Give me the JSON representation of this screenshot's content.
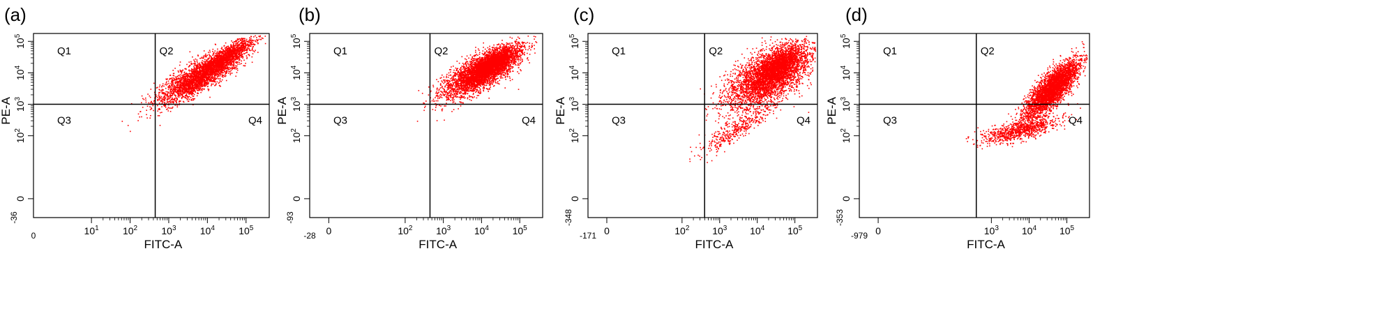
{
  "chart_data": [
    {
      "type": "scatter",
      "panel_label": "(a)",
      "xlabel": "FITC-A",
      "ylabel": "PE-A",
      "x_min_label": "0",
      "y_min_label": "-36",
      "x_ticks": [
        {
          "v": 1,
          "label": "10^1"
        },
        {
          "v": 2,
          "label": "10^2"
        },
        {
          "v": 3,
          "label": "10^3"
        },
        {
          "v": 4,
          "label": "10^4"
        },
        {
          "v": 5,
          "label": "10^5"
        }
      ],
      "y_ticks": [
        {
          "v": 0,
          "label": "0"
        },
        {
          "v": 2,
          "label": "10^2"
        },
        {
          "v": 3,
          "label": "10^3"
        },
        {
          "v": 4,
          "label": "10^4"
        },
        {
          "v": 5,
          "label": "10^5"
        }
      ],
      "gate": {
        "x": 2.65,
        "y": 3.0
      },
      "quadrants": [
        "Q1",
        "Q2",
        "Q3",
        "Q4"
      ],
      "point_color": "#ff0000",
      "populations": [
        {
          "mx": 3.85,
          "my": 3.95,
          "sx": 0.55,
          "sy": 0.45,
          "n": 3200,
          "diag": -0.85
        },
        {
          "mx": 4.55,
          "my": 4.6,
          "sx": 0.3,
          "sy": 0.25,
          "n": 800,
          "diag": -0.85
        }
      ]
    },
    {
      "type": "scatter",
      "panel_label": "(b)",
      "xlabel": "FITC-A",
      "ylabel": "PE-A",
      "x_min_label": "-28",
      "y_min_label": "-93",
      "x_ticks": [
        {
          "v": 0,
          "label": "0"
        },
        {
          "v": 2,
          "label": "10^2"
        },
        {
          "v": 3,
          "label": "10^3"
        },
        {
          "v": 4,
          "label": "10^4"
        },
        {
          "v": 5,
          "label": "10^5"
        }
      ],
      "y_ticks": [
        {
          "v": 0,
          "label": "0"
        },
        {
          "v": 2,
          "label": "10^2"
        },
        {
          "v": 3,
          "label": "10^3"
        },
        {
          "v": 4,
          "label": "10^4"
        },
        {
          "v": 5,
          "label": "10^5"
        }
      ],
      "gate": {
        "x": 2.65,
        "y": 3.0
      },
      "quadrants": [
        "Q1",
        "Q2",
        "Q3",
        "Q4"
      ],
      "point_color": "#ff0000",
      "populations": [
        {
          "mx": 4.0,
          "my": 4.05,
          "sx": 0.5,
          "sy": 0.4,
          "n": 3600,
          "diag": -0.75
        },
        {
          "mx": 4.25,
          "my": 4.3,
          "sx": 0.3,
          "sy": 0.25,
          "n": 1800,
          "diag": -0.75
        }
      ]
    },
    {
      "type": "scatter",
      "panel_label": "(c)",
      "xlabel": "FITC-A",
      "ylabel": "PE-A",
      "x_min_label": "-171",
      "y_min_label": "-348",
      "x_ticks": [
        {
          "v": 0,
          "label": "0"
        },
        {
          "v": 2,
          "label": "10^2"
        },
        {
          "v": 3,
          "label": "10^3"
        },
        {
          "v": 4,
          "label": "10^4"
        },
        {
          "v": 5,
          "label": "10^5"
        }
      ],
      "y_ticks": [
        {
          "v": 0,
          "label": "0"
        },
        {
          "v": 2,
          "label": "10^2"
        },
        {
          "v": 3,
          "label": "10^3"
        },
        {
          "v": 4,
          "label": "10^4"
        },
        {
          "v": 5,
          "label": "10^5"
        }
      ],
      "gate": {
        "x": 2.6,
        "y": 3.0
      },
      "quadrants": [
        "Q1",
        "Q2",
        "Q3",
        "Q4"
      ],
      "point_color": "#ff0000",
      "populations": [
        {
          "mx": 4.3,
          "my": 3.9,
          "sx": 0.55,
          "sy": 0.5,
          "n": 3600,
          "diag": -0.6
        },
        {
          "mx": 4.55,
          "my": 4.25,
          "sx": 0.3,
          "sy": 0.3,
          "n": 1400,
          "diag": -0.6
        },
        {
          "mx": 3.4,
          "my": 2.2,
          "sx": 0.5,
          "sy": 0.4,
          "n": 400,
          "diag": -0.9
        }
      ]
    },
    {
      "type": "scatter",
      "panel_label": "(d)",
      "xlabel": "FITC-A",
      "ylabel": "PE-A",
      "x_min_label": "-979",
      "y_min_label": "-353",
      "x_ticks": [
        {
          "v": 0,
          "label": "0"
        },
        {
          "v": 3,
          "label": "10^3"
        },
        {
          "v": 4,
          "label": "10^4"
        },
        {
          "v": 5,
          "label": "10^5"
        }
      ],
      "y_ticks": [
        {
          "v": 0,
          "label": "0"
        },
        {
          "v": 2,
          "label": "10^2"
        },
        {
          "v": 3,
          "label": "10^3"
        },
        {
          "v": 4,
          "label": "10^4"
        },
        {
          "v": 5,
          "label": "10^5"
        }
      ],
      "gate": {
        "x": 2.6,
        "y": 3.0
      },
      "quadrants": [
        "Q1",
        "Q2",
        "Q3",
        "Q4"
      ],
      "point_color": "#ff0000",
      "populations": [
        {
          "mx": 4.6,
          "my": 3.5,
          "sx": 0.35,
          "sy": 0.45,
          "n": 3600,
          "diag": -0.8
        },
        {
          "mx": 3.75,
          "my": 2.2,
          "sx": 0.5,
          "sy": 0.2,
          "n": 900,
          "diag": -0.7
        }
      ]
    }
  ]
}
